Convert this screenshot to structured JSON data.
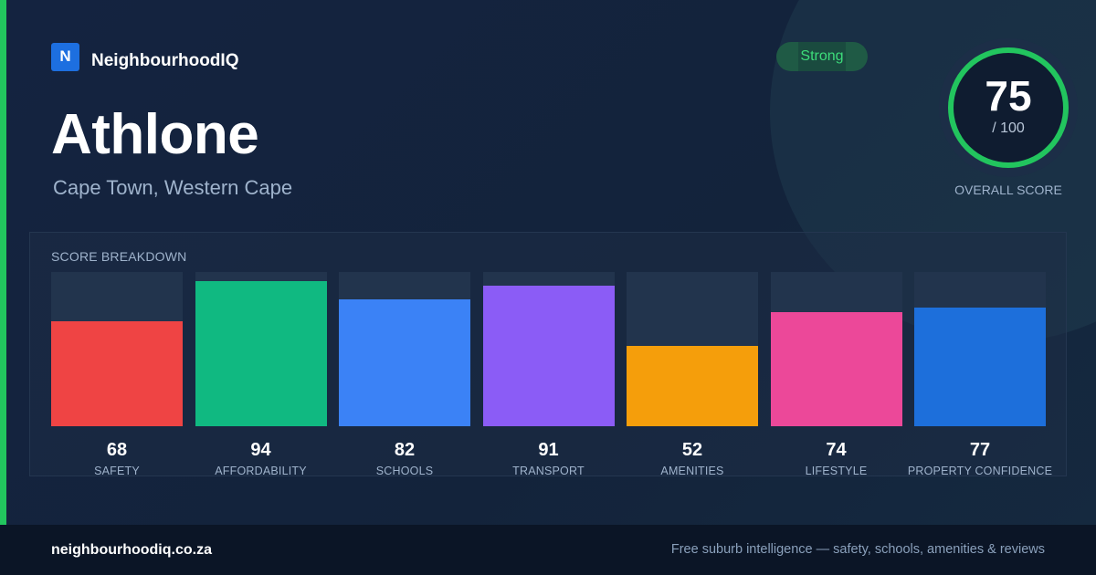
{
  "brand": {
    "logo_letter": "N",
    "name": "NeighbourhoodIQ",
    "logo_color": "#1d6fe0"
  },
  "suburb": {
    "name": "Athlone",
    "location": "Cape Town, Western Cape"
  },
  "rating_badge": {
    "label": "Strong",
    "color": "#3ddc7a"
  },
  "overall_score": {
    "value": "75",
    "max_label": "/ 100",
    "caption": "OVERALL SCORE",
    "fraction": 0.75,
    "ring_color": "#22c55e"
  },
  "breakdown": {
    "title": "SCORE BREAKDOWN",
    "items": [
      {
        "label": "SAFETY",
        "value": 68,
        "color": "#ef4444"
      },
      {
        "label": "AFFORDABILITY",
        "value": 94,
        "color": "#10b981"
      },
      {
        "label": "SCHOOLS",
        "value": 82,
        "color": "#3b82f6"
      },
      {
        "label": "TRANSPORT",
        "value": 91,
        "color": "#8b5cf6"
      },
      {
        "label": "AMENITIES",
        "value": 52,
        "color": "#f59e0b"
      },
      {
        "label": "LIFESTYLE",
        "value": 74,
        "color": "#ec4899"
      },
      {
        "label": "PROPERTY CONFIDENCE",
        "value": 77,
        "color": "#1d6fdb"
      }
    ]
  },
  "footer": {
    "url": "neighbourhoodiq.co.za",
    "tagline": "Free suburb intelligence — safety, schools, amenities & reviews"
  }
}
